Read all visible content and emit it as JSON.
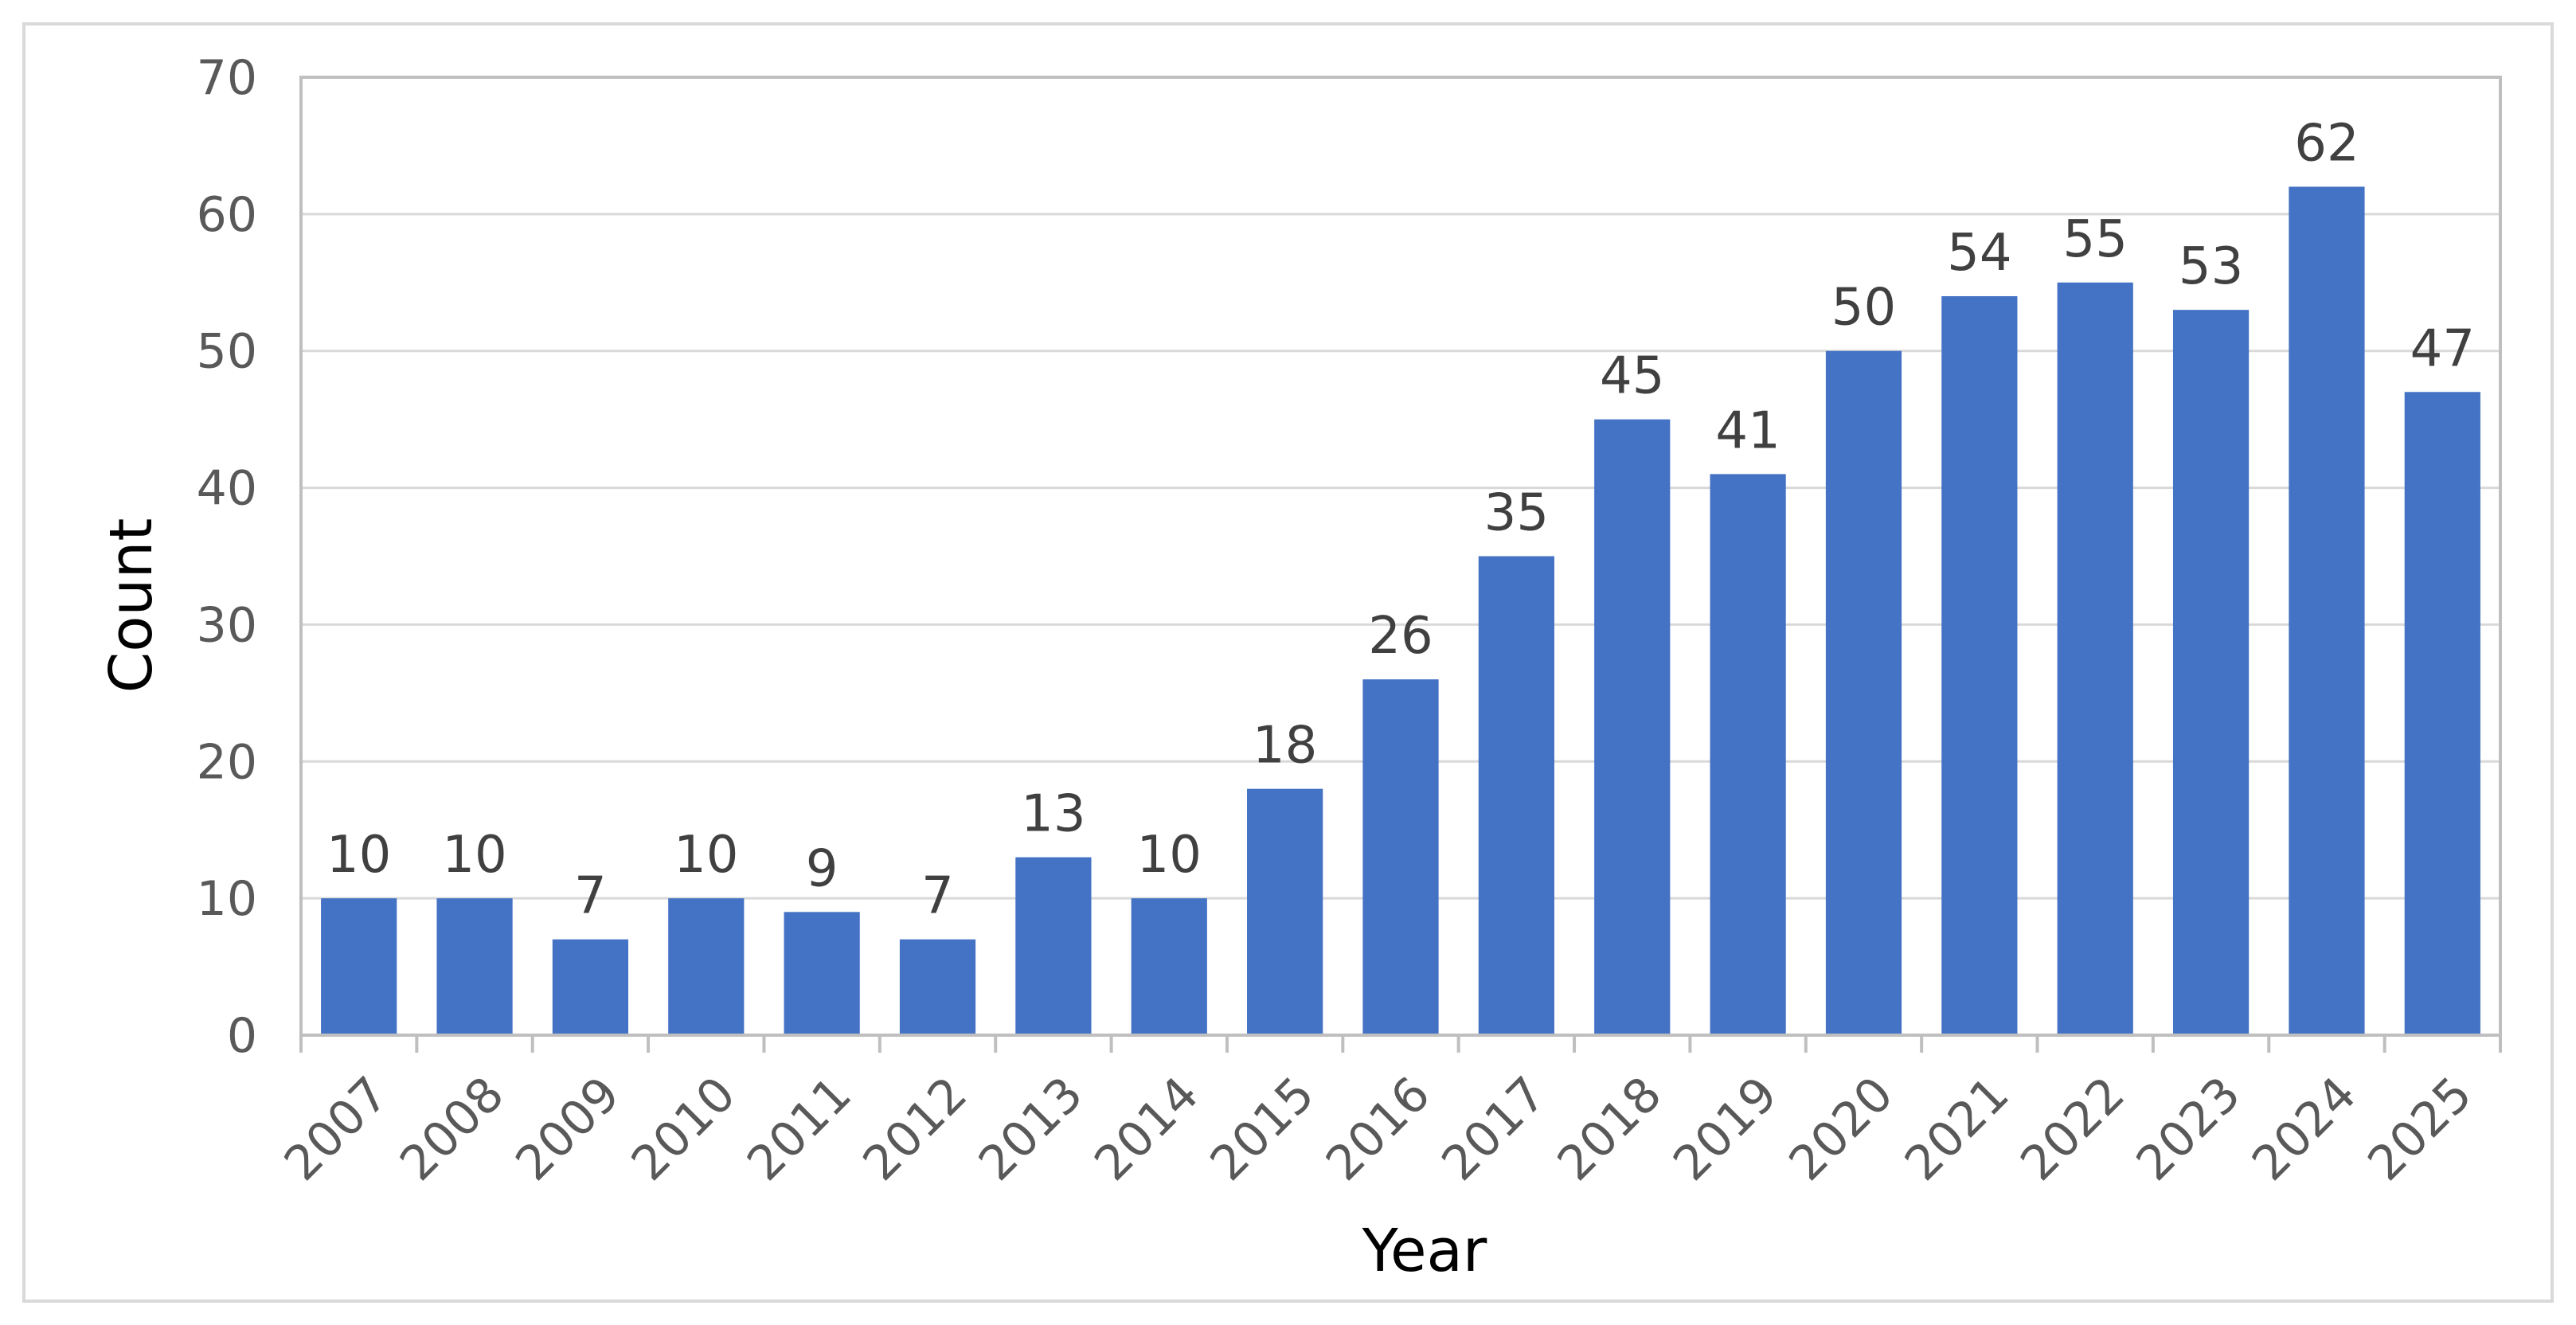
{
  "chart_data": {
    "type": "bar",
    "categories": [
      "2007",
      "2008",
      "2009",
      "2010",
      "2011",
      "2012",
      "2013",
      "2014",
      "2015",
      "2016",
      "2017",
      "2018",
      "2019",
      "2020",
      "2021",
      "2022",
      "2023",
      "2024",
      "2025"
    ],
    "values": [
      10,
      10,
      7,
      10,
      9,
      7,
      13,
      10,
      18,
      26,
      35,
      45,
      41,
      50,
      54,
      55,
      53,
      62,
      47
    ],
    "xlabel": "Year",
    "ylabel": "Count",
    "ylim": [
      0,
      70
    ],
    "yticks": [
      0,
      10,
      20,
      30,
      40,
      50,
      60,
      70
    ],
    "grid": true,
    "legend": "none",
    "bar_color": "#4472C4",
    "grid_color": "#D9D9D9",
    "axis_color": "#BFBFBF",
    "data_labels": true
  }
}
